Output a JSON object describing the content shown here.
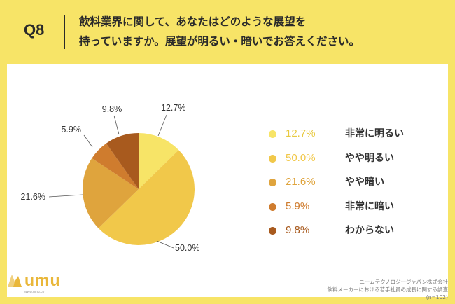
{
  "header": {
    "q_label": "Q8",
    "question_line1": "飲料業界に関して、あなたはどのような展望を",
    "question_line2": "持っていますか。展望が明るい・暗いでお答えください。"
  },
  "chart_data": {
    "type": "pie",
    "categories": [
      "非常に明るい",
      "やや明るい",
      "やや暗い",
      "非常に暗い",
      "わからない"
    ],
    "values": [
      12.7,
      50.0,
      21.6,
      5.9,
      9.8
    ],
    "value_labels": [
      "12.7%",
      "50.0%",
      "21.6%",
      "5.9%",
      "9.8%"
    ],
    "colors": [
      "#F7E467",
      "#F1C84A",
      "#DFA43D",
      "#CF7C2E",
      "#A85A1E"
    ],
    "start": "12 o'clock, clockwise",
    "legend_position": "right"
  },
  "footer": {
    "company": "ユームテクノロジージャパン株式会社",
    "survey": "飲料メーカーにおける若手社員の成長に関する調査",
    "n": "(n=102)"
  },
  "logo": {
    "text": "umu",
    "url": "www.umu.co"
  }
}
